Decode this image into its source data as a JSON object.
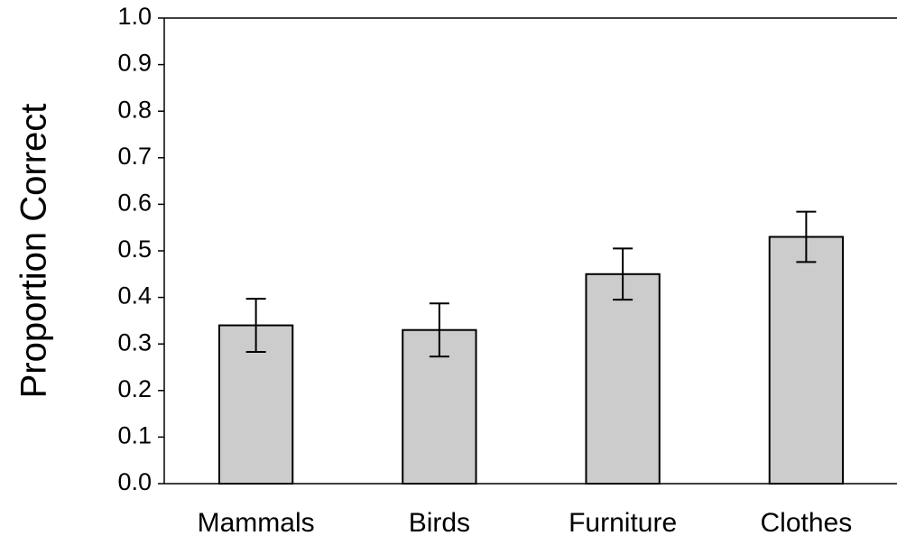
{
  "chart_data": {
    "type": "bar",
    "y_label": "Proportion Correct",
    "categories": [
      "Mammals",
      "Birds",
      "Furniture",
      "Clothes"
    ],
    "values": [
      0.34,
      0.33,
      0.45,
      0.53
    ],
    "errors": [
      0.057,
      0.057,
      0.055,
      0.054
    ],
    "color": "#cccccc",
    "ylim": [
      0,
      1
    ],
    "yticks": [
      {
        "value": 0,
        "label": "0.0"
      },
      0.1,
      0.2,
      0.3,
      0.4,
      0.5,
      0.6,
      0.7,
      0.8,
      0.9,
      {
        "value": 1,
        "label": "1.0"
      }
    ],
    "grid": false
  }
}
